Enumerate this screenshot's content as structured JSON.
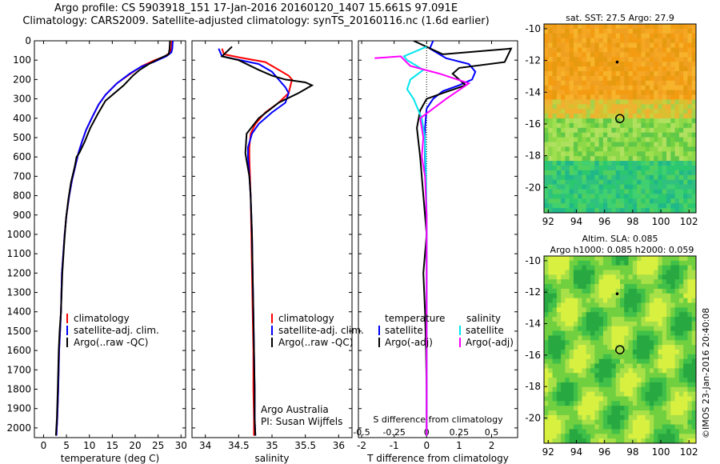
{
  "header": {
    "line1": "Argo profile: CS 5903918_151 17-Jan-2016 20160120_1407 15.661S 97.091E",
    "line2": "Climatology: CARS2009. Satellite-adjusted climatology: synTS_20160116.nc (1.6d earlier)"
  },
  "sst_map": {
    "title": "sat. SST: 27.5 Argo: 27.9",
    "xticks": [
      92,
      94,
      96,
      98,
      100,
      102
    ],
    "yticks": [
      -10,
      -12,
      -14,
      -16,
      -18,
      -20
    ],
    "xlim": [
      91.7,
      102.5
    ],
    "ylim": [
      -21.6,
      -9.7
    ],
    "argo_position": [
      97.09,
      -15.66
    ],
    "black_dot": [
      96.9,
      -12.1
    ]
  },
  "sla_map": {
    "title1": "Altim. SLA: 0.085",
    "title2": "Argo h1000: 0.085 h2000: 0.059",
    "xticks": [
      92,
      94,
      96,
      98,
      100,
      102
    ],
    "yticks": [
      -10,
      -12,
      -14,
      -16,
      -18,
      -20
    ],
    "xlim": [
      91.7,
      102.5
    ],
    "ylim": [
      -21.6,
      -9.7
    ],
    "argo_position": [
      97.09,
      -15.66
    ],
    "black_dot": [
      96.9,
      -12.1
    ]
  },
  "stamp": "©IMOS 23-Jan-2016 20:40:08",
  "panels": {
    "temperature": {
      "xlabel": "temperature (deg C)",
      "legend": [
        "climatology",
        "satellite-adj. clim.",
        "Argo(..raw -QC)"
      ]
    },
    "salinity": {
      "xlabel": "salinity",
      "legend": [
        "climatology",
        "satellite-adj. clim.",
        "Argo(..raw -QC)"
      ],
      "note1": "Argo Australia",
      "note2": "PI: Susan Wijffels"
    },
    "difference": {
      "legend_head_t": "temperature",
      "legend_head_s": "salinity",
      "legend_t": [
        "satellite",
        "Argo(-adj)"
      ],
      "legend_s": [
        "satellite",
        "Argo(-adj)"
      ],
      "top_label": "S difference from climatology",
      "xlabel": "T difference from climatology"
    }
  },
  "chart_data": [
    {
      "type": "line",
      "name": "temperature",
      "xlabel": "temperature (deg C)",
      "xlim": [
        -2,
        31
      ],
      "ylim": [
        0,
        2050
      ],
      "xticks": [
        0,
        5,
        10,
        15,
        20,
        25,
        30
      ],
      "yticks": [
        0,
        100,
        200,
        300,
        400,
        500,
        600,
        700,
        800,
        900,
        1000,
        1100,
        1200,
        1300,
        1400,
        1500,
        1600,
        1700,
        1800,
        1900,
        2000
      ],
      "series": [
        {
          "name": "climatology",
          "color": "#ff0000",
          "x": [
            28.0,
            27.9,
            27.6,
            26.5,
            24.3,
            21.5,
            19.0,
            16.0,
            13.5,
            12.0,
            10.5,
            9.3,
            8.4,
            7.6,
            6.9,
            6.2,
            5.6,
            5.0,
            4.6,
            4.3,
            4.0,
            3.8,
            3.6,
            3.4,
            3.2,
            3.0,
            2.8
          ],
          "y": [
            0,
            40,
            60,
            80,
            100,
            130,
            170,
            220,
            280,
            330,
            400,
            460,
            520,
            580,
            650,
            720,
            800,
            900,
            1000,
            1100,
            1200,
            1400,
            1500,
            1600,
            1800,
            1950,
            2040
          ]
        },
        {
          "name": "satellite-adj. clim.",
          "color": "#0000ff",
          "x": [
            28.2,
            28.1,
            27.9,
            26.8,
            24.0,
            21.2,
            18.8,
            16.0,
            13.5,
            12.0,
            10.5,
            9.3,
            8.4,
            7.6,
            6.9,
            6.2,
            5.6,
            5.0,
            4.6,
            4.3,
            4.0,
            3.8,
            3.6,
            3.4,
            3.2,
            3.0,
            2.8
          ],
          "y": [
            0,
            40,
            60,
            80,
            110,
            135,
            170,
            220,
            280,
            330,
            400,
            460,
            520,
            580,
            650,
            720,
            800,
            900,
            1000,
            1100,
            1200,
            1400,
            1500,
            1600,
            1800,
            1950,
            2040
          ]
        },
        {
          "name": "Argo(..raw -QC)",
          "color": "#000000",
          "x": [
            27.6,
            27.5,
            27.3,
            25.0,
            23.0,
            21.0,
            19.5,
            17.5,
            15.5,
            13.5,
            11.8,
            10.2,
            9.0,
            7.8,
            7.2,
            6.8,
            6.0,
            5.4,
            4.9,
            4.5,
            4.1,
            3.8,
            3.5,
            3.3,
            3.1,
            2.9,
            2.7
          ],
          "y": [
            0,
            40,
            70,
            95,
            120,
            150,
            180,
            230,
            270,
            310,
            380,
            450,
            520,
            580,
            600,
            650,
            730,
            820,
            920,
            1050,
            1200,
            1400,
            1500,
            1600,
            1800,
            1950,
            2040
          ]
        }
      ]
    },
    {
      "type": "line",
      "name": "salinity",
      "xlabel": "salinity",
      "xlim": [
        33.8,
        36.2
      ],
      "ylim": [
        0,
        2050
      ],
      "xticks": [
        34,
        34.5,
        35,
        35.5,
        36
      ],
      "series": [
        {
          "name": "climatology",
          "color": "#ff0000",
          "x": [
            34.25,
            34.28,
            34.5,
            34.9,
            35.1,
            35.25,
            35.3,
            35.25,
            35.1,
            34.9,
            34.75,
            34.68,
            34.66,
            34.66,
            34.67,
            34.68,
            34.69,
            34.7,
            34.71,
            34.72,
            34.72,
            34.73,
            34.73
          ],
          "y": [
            40,
            70,
            85,
            110,
            150,
            180,
            200,
            270,
            320,
            370,
            430,
            480,
            550,
            600,
            700,
            800,
            1000,
            1200,
            1400,
            1600,
            1800,
            1950,
            2040
          ]
        },
        {
          "name": "satellite-adj. clim.",
          "color": "#0000ff",
          "x": [
            34.2,
            34.25,
            34.45,
            34.8,
            35.0,
            35.1,
            35.2,
            35.25,
            35.2,
            35.0,
            34.8,
            34.7,
            34.64,
            34.64,
            34.66,
            34.68,
            34.7,
            34.71,
            34.72,
            34.73,
            34.74,
            34.74,
            34.75
          ],
          "y": [
            40,
            80,
            95,
            120,
            160,
            200,
            240,
            270,
            320,
            370,
            430,
            480,
            550,
            600,
            700,
            800,
            1000,
            1200,
            1400,
            1600,
            1800,
            1950,
            2040
          ]
        },
        {
          "name": "Argo(..raw -QC)",
          "color": "#000000",
          "x": [
            34.4,
            34.25,
            34.5,
            34.8,
            35.0,
            35.2,
            35.5,
            35.6,
            35.4,
            35.1,
            34.8,
            34.62,
            34.6,
            34.62,
            34.66,
            34.68,
            34.7,
            34.71,
            34.72,
            34.73,
            34.74,
            34.74,
            34.75
          ],
          "y": [
            30,
            80,
            100,
            150,
            180,
            200,
            215,
            230,
            270,
            320,
            400,
            480,
            580,
            620,
            700,
            800,
            1000,
            1200,
            1400,
            1600,
            1800,
            1950,
            2040
          ]
        }
      ]
    },
    {
      "type": "line",
      "name": "difference",
      "xlabel": "T difference from climatology",
      "top_label": "S difference from climatology",
      "xlim": [
        -2.1,
        2.8
      ],
      "ylim": [
        0,
        2050
      ],
      "xticks": [
        -2,
        -1,
        0,
        1,
        2
      ],
      "xtick_labels": [
        "-2",
        "-1",
        "0",
        "1",
        "2"
      ],
      "top_ticks": [
        -0.5,
        -0.25,
        0,
        0.25,
        0.5
      ],
      "series": [
        {
          "name": "temperature satellite",
          "color": "#0000ff",
          "x": [
            0.2,
            0.1,
            0.6,
            1.3,
            1.5,
            1.4,
            1.0,
            0.5,
            0.2,
            0.0,
            -0.05,
            -0.05,
            -0.02,
            0.0,
            0.0,
            0.0,
            0.0,
            0.0,
            0.0
          ],
          "y": [
            0,
            40,
            90,
            120,
            160,
            200,
            230,
            260,
            300,
            350,
            450,
            600,
            800,
            1000,
            1200,
            1400,
            1600,
            1800,
            2040
          ]
        },
        {
          "name": "temperature Argo(-adj)",
          "color": "#000000",
          "x": [
            -0.4,
            0.5,
            2.6,
            2.4,
            1.0,
            0.8,
            1.2,
            0.5,
            0.0,
            -0.2,
            -0.3,
            -0.2,
            -0.1,
            0.0,
            -0.1,
            -0.05,
            -0.02,
            0.0,
            0.0
          ],
          "y": [
            0,
            70,
            40,
            110,
            140,
            170,
            230,
            270,
            300,
            360,
            450,
            600,
            800,
            1000,
            1200,
            1400,
            1600,
            1800,
            2040
          ]
        },
        {
          "name": "salinity satellite",
          "color": "#00e5ee",
          "x": [
            0.0,
            -0.7,
            -0.6,
            -0.1,
            -0.5,
            -0.6,
            -0.4,
            -0.15,
            -0.05,
            -0.02,
            0.0,
            0.0,
            0.0,
            0.0,
            0.0
          ],
          "y": [
            30,
            80,
            100,
            150,
            200,
            250,
            300,
            400,
            500,
            700,
            900,
            1200,
            1500,
            1800,
            2040
          ]
        },
        {
          "name": "salinity Argo(-adj)",
          "color": "#ff00ff",
          "x": [
            -1.6,
            -0.8,
            -0.5,
            0.4,
            1.3,
            0.6,
            -0.2,
            -0.1,
            -0.15,
            -0.05,
            0.0,
            0.0,
            0.0,
            0.0,
            0.0
          ],
          "y": [
            90,
            80,
            130,
            170,
            220,
            300,
            400,
            500,
            600,
            700,
            900,
            1200,
            1500,
            1800,
            2040
          ]
        }
      ]
    }
  ]
}
